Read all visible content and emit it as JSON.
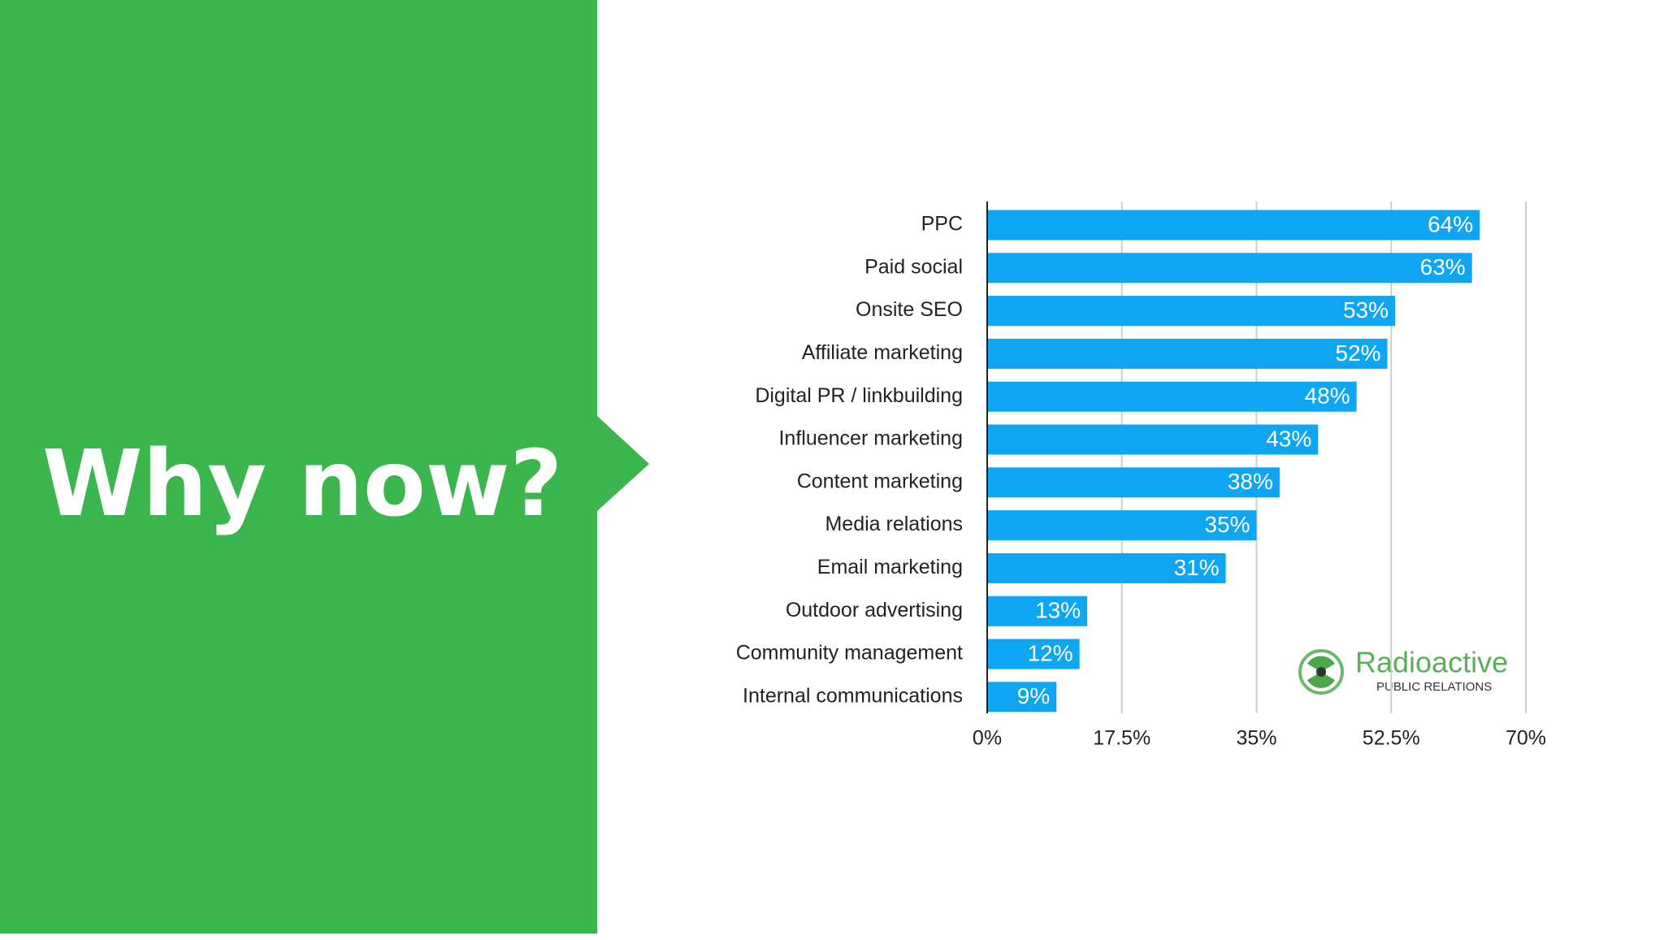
{
  "slide": {
    "heading": "Why now?"
  },
  "logo": {
    "name": "Radioactive",
    "tagline": "PUBLIC RELATIONS"
  },
  "chart_data": {
    "type": "hbar",
    "categories": [
      "PPC",
      "Paid social",
      "Onsite SEO",
      "Affiliate marketing",
      "Digital PR / linkbuilding",
      "Influencer marketing",
      "Content marketing",
      "Media relations",
      "Email marketing",
      "Outdoor advertising",
      "Community management",
      "Internal communications"
    ],
    "values": [
      64,
      63,
      53,
      52,
      48,
      43,
      38,
      35,
      31,
      13,
      12,
      9
    ],
    "value_labels": [
      "64%",
      "63%",
      "53%",
      "52%",
      "48%",
      "43%",
      "38%",
      "35%",
      "31%",
      "13%",
      "12%",
      "9%"
    ],
    "color": "#0ea5f2",
    "xlim": [
      0,
      70
    ],
    "xticks": [
      {
        "value": 0,
        "label": "0%"
      },
      {
        "value": 17.5,
        "label": "17.5%"
      },
      {
        "value": 35,
        "label": "35%"
      },
      {
        "value": 52.5,
        "label": "52.5%"
      },
      {
        "value": 70,
        "label": "70%"
      }
    ],
    "grid": true
  }
}
